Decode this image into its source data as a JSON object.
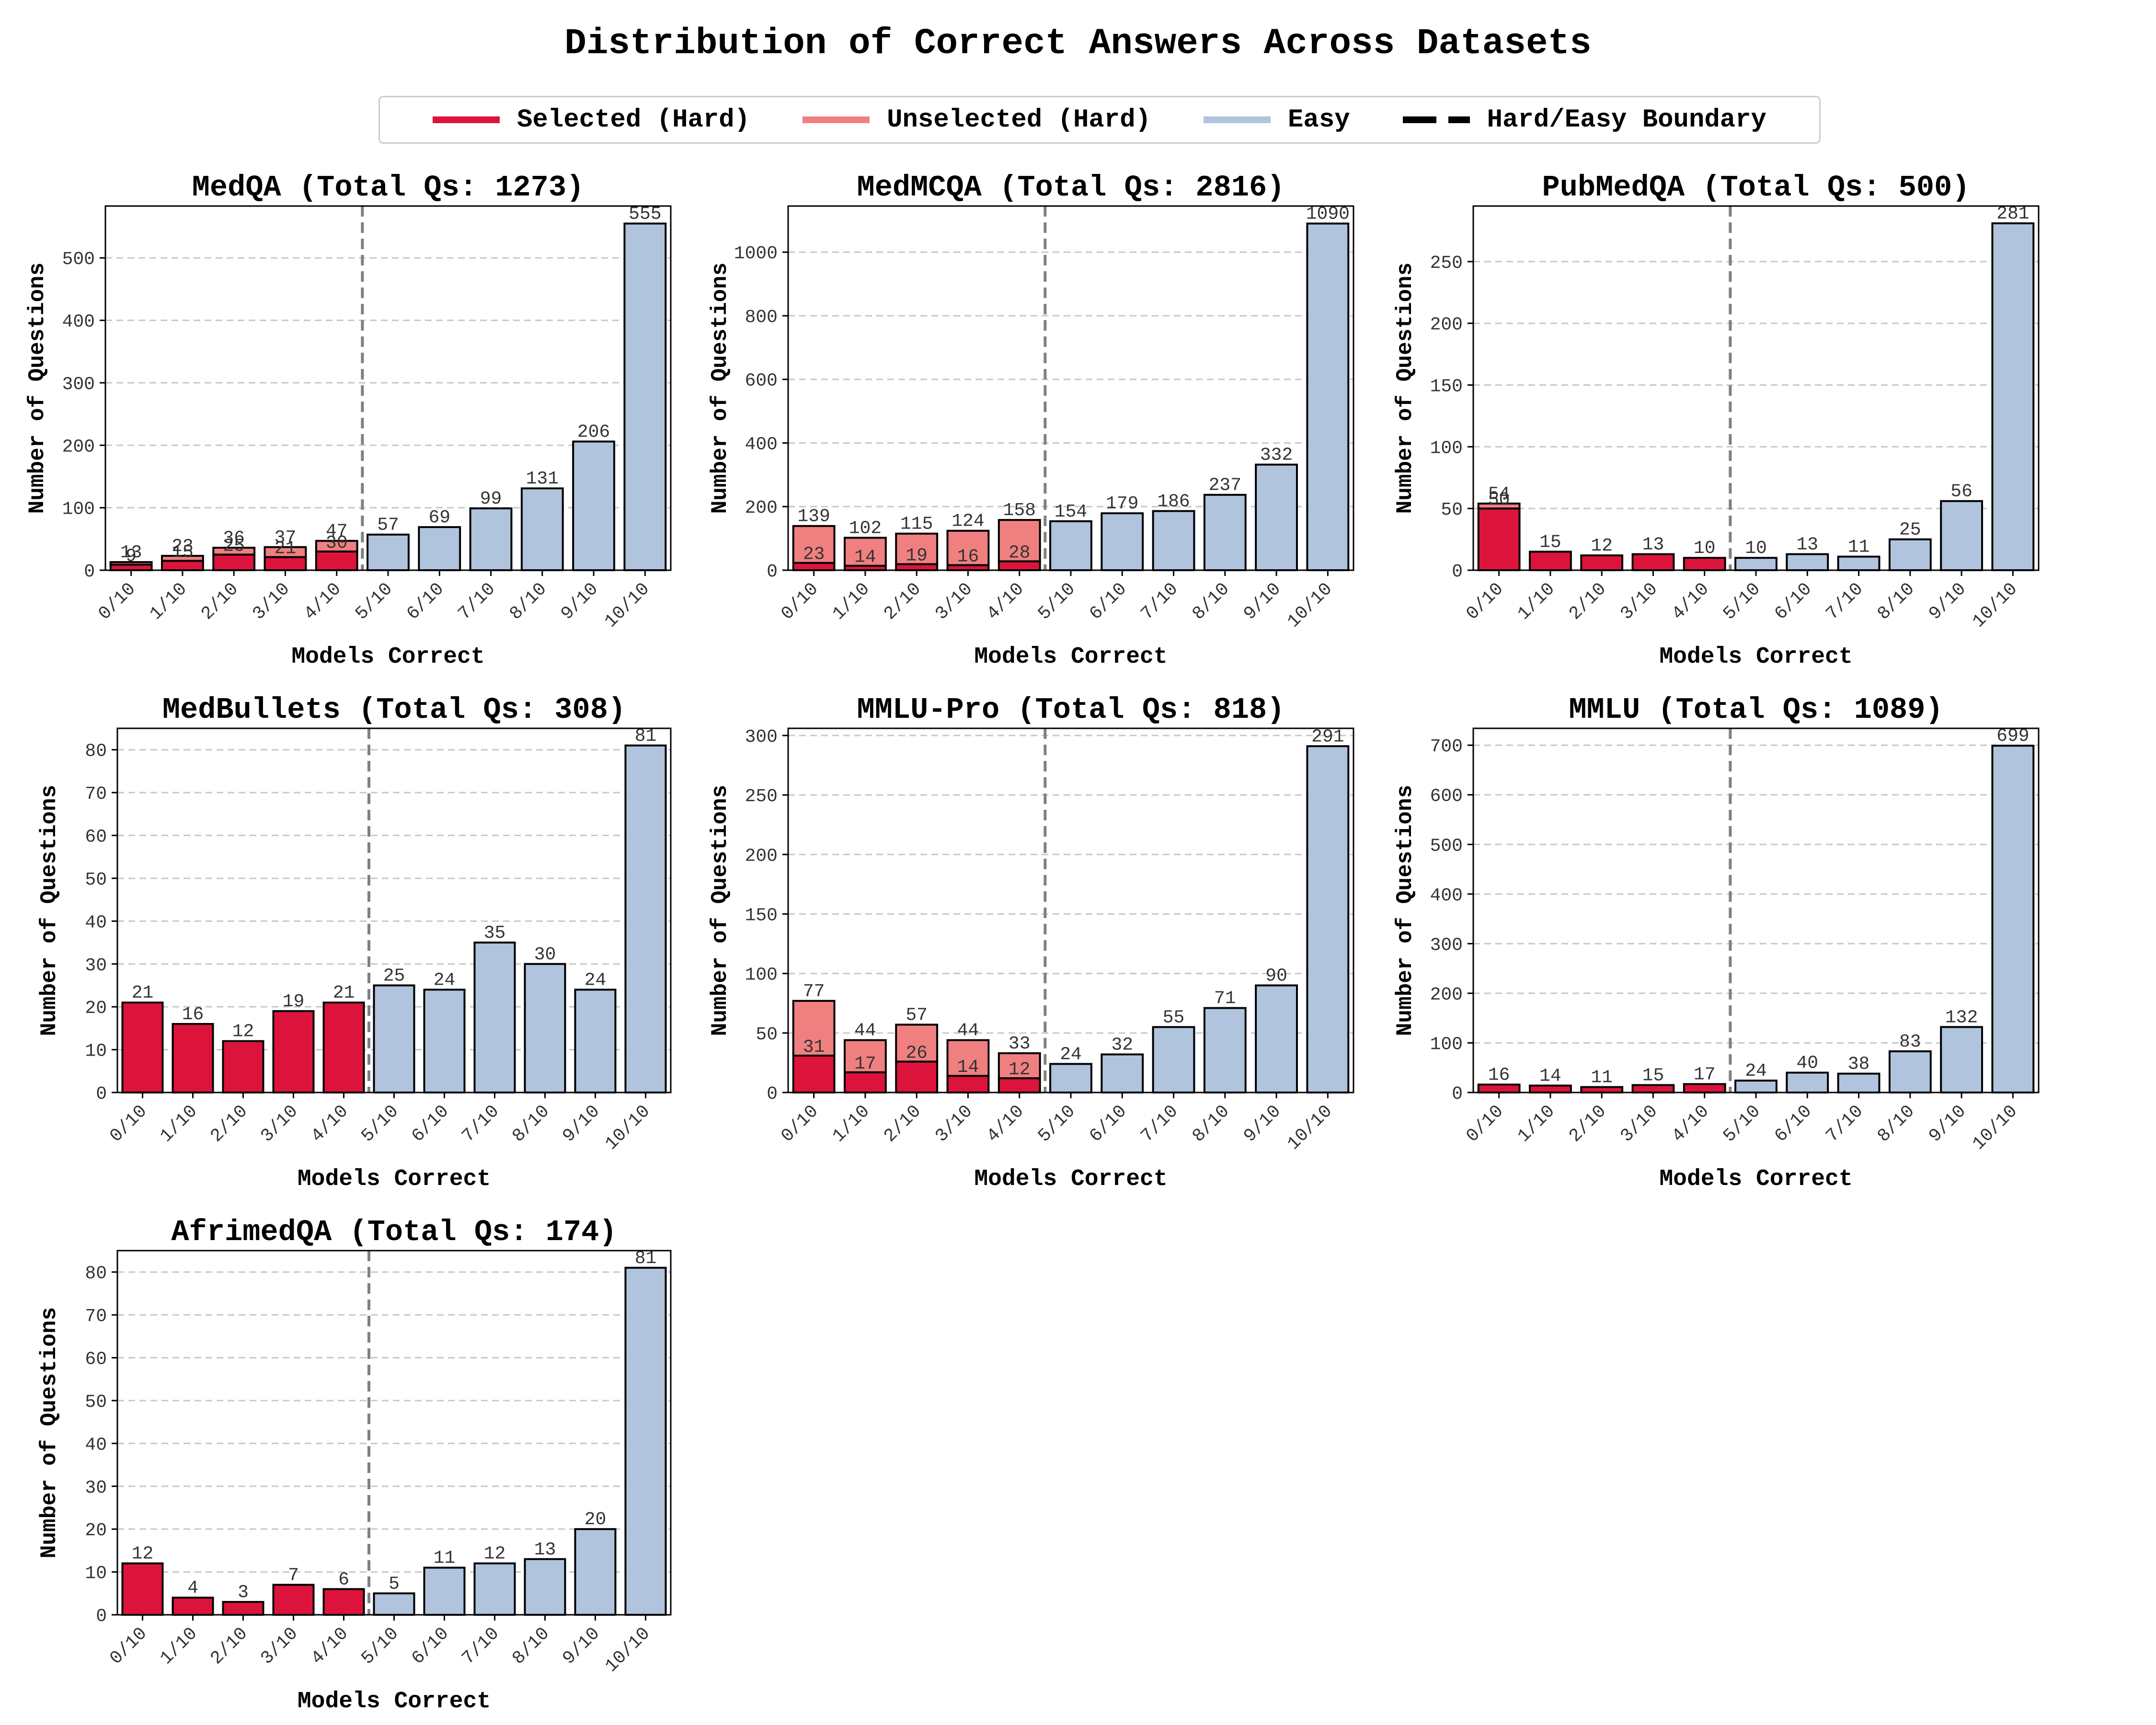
{
  "title": "Distribution of Correct Answers Across Datasets",
  "legend": [
    {
      "label": "Selected (Hard)",
      "color": "#dc143c",
      "style": "solid"
    },
    {
      "label": "Unselected (Hard)",
      "color": "#f08080",
      "style": "solid"
    },
    {
      "label": "Easy",
      "color": "#b0c4de",
      "style": "solid"
    },
    {
      "label": "Hard/Easy Boundary",
      "color": "#000000",
      "style": "dashed"
    }
  ],
  "colors": {
    "selected": "#dc143c",
    "unselected": "#f08080",
    "easy": "#b0c4de",
    "boundary": "#808080",
    "grid": "#c8c8c8"
  },
  "chart_data": [
    {
      "type": "bar",
      "title": "MedQA (Total Qs: 1273)",
      "xlabel": "Models Correct",
      "ylabel": "Number of Questions",
      "grid": true,
      "categories": [
        "0/10",
        "1/10",
        "2/10",
        "3/10",
        "4/10",
        "5/10",
        "6/10",
        "7/10",
        "8/10",
        "9/10",
        "10/10"
      ],
      "ylim": [
        0,
        583
      ],
      "yticks": [
        0,
        100,
        200,
        300,
        400,
        500
      ],
      "series": [
        {
          "name": "Selected (Hard)",
          "values": [
            9,
            15,
            25,
            21,
            30,
            null,
            null,
            null,
            null,
            null,
            null
          ]
        },
        {
          "name": "Unselected (Hard)",
          "values": [
            4,
            8,
            11,
            16,
            17,
            null,
            null,
            null,
            null,
            null,
            null
          ]
        },
        {
          "name": "Easy",
          "values": [
            null,
            null,
            null,
            null,
            null,
            57,
            69,
            99,
            131,
            206,
            555
          ]
        }
      ],
      "totals": [
        13,
        23,
        36,
        37,
        47,
        57,
        69,
        99,
        131,
        206,
        555
      ],
      "boundary_between": [
        "4/10",
        "5/10"
      ]
    },
    {
      "type": "bar",
      "title": "MedMCQA (Total Qs: 2816)",
      "xlabel": "Models Correct",
      "ylabel": "Number of Questions",
      "grid": true,
      "categories": [
        "0/10",
        "1/10",
        "2/10",
        "3/10",
        "4/10",
        "5/10",
        "6/10",
        "7/10",
        "8/10",
        "9/10",
        "10/10"
      ],
      "ylim": [
        0,
        1145
      ],
      "yticks": [
        0,
        200,
        400,
        600,
        800,
        1000
      ],
      "series": [
        {
          "name": "Selected (Hard)",
          "values": [
            23,
            14,
            19,
            16,
            28,
            null,
            null,
            null,
            null,
            null,
            null
          ]
        },
        {
          "name": "Unselected (Hard)",
          "values": [
            116,
            88,
            96,
            108,
            130,
            null,
            null,
            null,
            null,
            null,
            null
          ]
        },
        {
          "name": "Easy",
          "values": [
            null,
            null,
            null,
            null,
            null,
            154,
            179,
            186,
            237,
            332,
            1090
          ]
        }
      ],
      "totals": [
        139,
        102,
        115,
        124,
        158,
        154,
        179,
        186,
        237,
        332,
        1090
      ],
      "boundary_between": [
        "4/10",
        "5/10"
      ]
    },
    {
      "type": "bar",
      "title": "PubMedQA (Total Qs: 500)",
      "xlabel": "Models Correct",
      "ylabel": "Number of Questions",
      "grid": true,
      "categories": [
        "0/10",
        "1/10",
        "2/10",
        "3/10",
        "4/10",
        "5/10",
        "6/10",
        "7/10",
        "8/10",
        "9/10",
        "10/10"
      ],
      "ylim": [
        0,
        295
      ],
      "yticks": [
        0,
        50,
        100,
        150,
        200,
        250
      ],
      "series": [
        {
          "name": "Selected (Hard)",
          "values": [
            50,
            15,
            12,
            13,
            10,
            null,
            null,
            null,
            null,
            null,
            null
          ]
        },
        {
          "name": "Unselected (Hard)",
          "values": [
            4,
            0,
            0,
            0,
            0,
            null,
            null,
            null,
            null,
            null,
            null
          ]
        },
        {
          "name": "Easy",
          "values": [
            null,
            null,
            null,
            null,
            null,
            10,
            13,
            11,
            25,
            56,
            281
          ]
        }
      ],
      "totals": [
        54,
        15,
        12,
        13,
        10,
        10,
        13,
        11,
        25,
        56,
        281
      ],
      "boundary_between": [
        "4/10",
        "5/10"
      ]
    },
    {
      "type": "bar",
      "title": "MedBullets (Total Qs: 308)",
      "xlabel": "Models Correct",
      "ylabel": "Number of Questions",
      "grid": true,
      "categories": [
        "0/10",
        "1/10",
        "2/10",
        "3/10",
        "4/10",
        "5/10",
        "6/10",
        "7/10",
        "8/10",
        "9/10",
        "10/10"
      ],
      "ylim": [
        0,
        85
      ],
      "yticks": [
        0,
        10,
        20,
        30,
        40,
        50,
        60,
        70,
        80
      ],
      "series": [
        {
          "name": "Selected (Hard)",
          "values": [
            21,
            16,
            12,
            19,
            21,
            null,
            null,
            null,
            null,
            null,
            null
          ]
        },
        {
          "name": "Easy",
          "values": [
            null,
            null,
            null,
            null,
            null,
            25,
            24,
            35,
            30,
            24,
            81
          ]
        }
      ],
      "totals": [
        21,
        16,
        12,
        19,
        21,
        25,
        24,
        35,
        30,
        24,
        81
      ],
      "boundary_between": [
        "4/10",
        "5/10"
      ]
    },
    {
      "type": "bar",
      "title": "MMLU-Pro (Total Qs: 818)",
      "xlabel": "Models Correct",
      "ylabel": "Number of Questions",
      "grid": true,
      "categories": [
        "0/10",
        "1/10",
        "2/10",
        "3/10",
        "4/10",
        "5/10",
        "6/10",
        "7/10",
        "8/10",
        "9/10",
        "10/10"
      ],
      "ylim": [
        0,
        306
      ],
      "yticks": [
        0,
        50,
        100,
        150,
        200,
        250,
        300
      ],
      "series": [
        {
          "name": "Selected (Hard)",
          "values": [
            31,
            17,
            26,
            14,
            12,
            null,
            null,
            null,
            null,
            null,
            null
          ]
        },
        {
          "name": "Unselected (Hard)",
          "values": [
            46,
            27,
            31,
            30,
            21,
            null,
            null,
            null,
            null,
            null,
            null
          ]
        },
        {
          "name": "Easy",
          "values": [
            null,
            null,
            null,
            null,
            null,
            24,
            32,
            55,
            71,
            90,
            291
          ]
        }
      ],
      "totals": [
        77,
        44,
        57,
        44,
        33,
        24,
        32,
        55,
        71,
        90,
        291
      ],
      "boundary_between": [
        "4/10",
        "5/10"
      ]
    },
    {
      "type": "bar",
      "title": "MMLU (Total Qs: 1089)",
      "xlabel": "Models Correct",
      "ylabel": "Number of Questions",
      "grid": true,
      "categories": [
        "0/10",
        "1/10",
        "2/10",
        "3/10",
        "4/10",
        "5/10",
        "6/10",
        "7/10",
        "8/10",
        "9/10",
        "10/10"
      ],
      "ylim": [
        0,
        734
      ],
      "yticks": [
        0,
        100,
        200,
        300,
        400,
        500,
        600,
        700
      ],
      "series": [
        {
          "name": "Selected (Hard)",
          "values": [
            16,
            14,
            11,
            15,
            17,
            null,
            null,
            null,
            null,
            null,
            null
          ]
        },
        {
          "name": "Easy",
          "values": [
            null,
            null,
            null,
            null,
            null,
            24,
            40,
            38,
            83,
            132,
            699
          ]
        }
      ],
      "totals": [
        16,
        14,
        11,
        15,
        17,
        24,
        40,
        38,
        83,
        132,
        699
      ],
      "boundary_between": [
        "4/10",
        "5/10"
      ]
    },
    {
      "type": "bar",
      "title": "AfrimedQA (Total Qs: 174)",
      "xlabel": "Models Correct",
      "ylabel": "Number of Questions",
      "grid": true,
      "categories": [
        "0/10",
        "1/10",
        "2/10",
        "3/10",
        "4/10",
        "5/10",
        "6/10",
        "7/10",
        "8/10",
        "9/10",
        "10/10"
      ],
      "ylim": [
        0,
        85
      ],
      "yticks": [
        0,
        10,
        20,
        30,
        40,
        50,
        60,
        70,
        80
      ],
      "series": [
        {
          "name": "Selected (Hard)",
          "values": [
            12,
            4,
            3,
            7,
            6,
            null,
            null,
            null,
            null,
            null,
            null
          ]
        },
        {
          "name": "Easy",
          "values": [
            null,
            null,
            null,
            null,
            null,
            5,
            11,
            12,
            13,
            20,
            81
          ]
        }
      ],
      "totals": [
        12,
        4,
        3,
        7,
        6,
        5,
        11,
        12,
        13,
        20,
        81
      ],
      "boundary_between": [
        "4/10",
        "5/10"
      ]
    }
  ]
}
